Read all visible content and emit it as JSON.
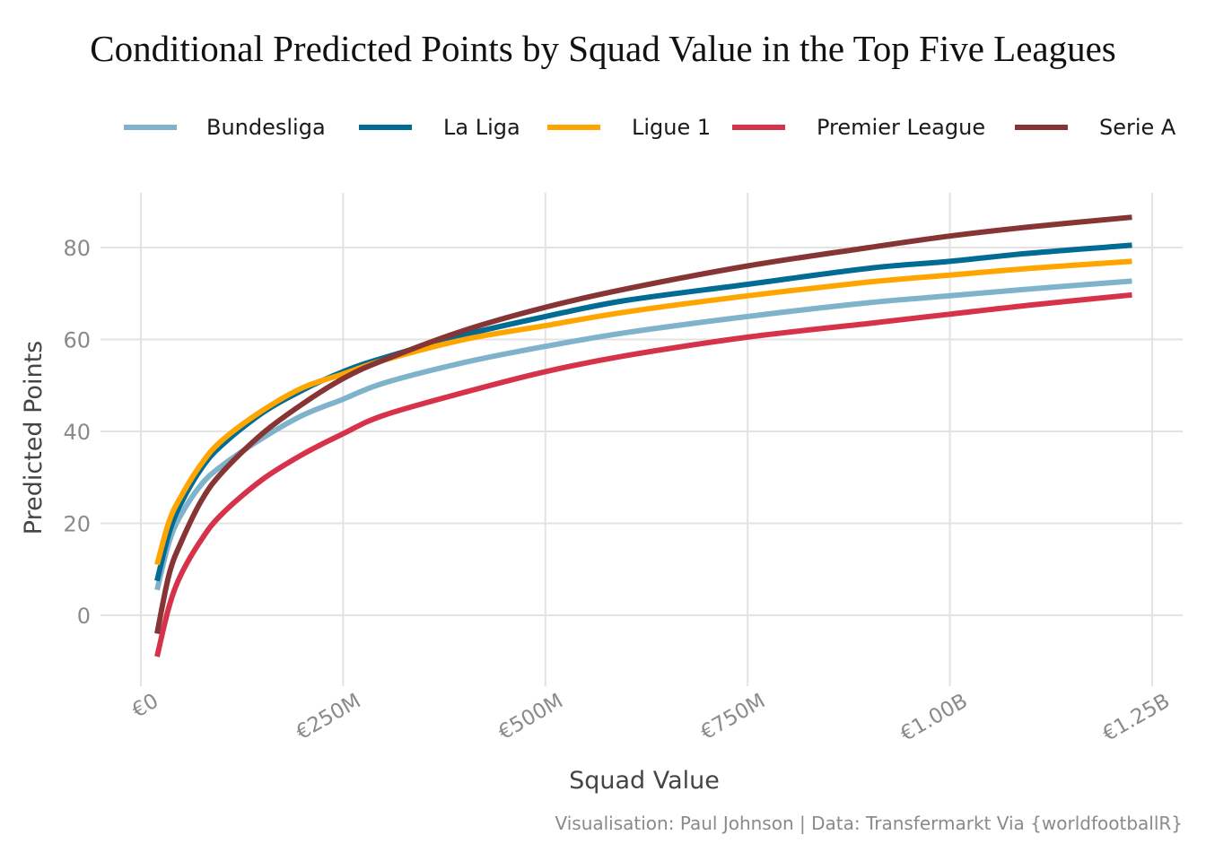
{
  "chart_data": {
    "type": "line",
    "title": "Conditional Predicted Points by Squad Value in the Top Five Leagues",
    "xlabel": "Squad Value",
    "ylabel": "Predicted Points",
    "caption": "Visualisation: Paul Johnson | Data: Transfermarkt Via {worldfootballR}",
    "x_tick_labels": [
      "€0",
      "€250M",
      "€500M",
      "€750M",
      "€1.00B",
      "€1.25B"
    ],
    "x_ticks": [
      0,
      250,
      500,
      750,
      1000,
      1250
    ],
    "y_ticks": [
      0,
      20,
      40,
      60,
      80
    ],
    "xlim": [
      -30,
      1290
    ],
    "ylim": [
      -15,
      92
    ],
    "x_unit": "€M",
    "grid": true,
    "legend_position": "top",
    "x": [
      20,
      35,
      50,
      75,
      100,
      150,
      200,
      250,
      300,
      400,
      500,
      600,
      750,
      900,
      1000,
      1100,
      1225
    ],
    "series": [
      {
        "name": "Bundesliga",
        "color": "#7fb3cb",
        "values": [
          5.5,
          16,
          22,
          28.5,
          32.5,
          38.5,
          43.5,
          47,
          50.5,
          55,
          58.5,
          61.5,
          65,
          68,
          69.5,
          71,
          72.7
        ]
      },
      {
        "name": "La Liga",
        "color": "#006b93",
        "values": [
          7.5,
          18,
          24.5,
          32,
          37,
          44,
          49,
          53,
          56,
          61,
          65,
          68.5,
          72,
          75.5,
          77,
          78.8,
          80.5
        ]
      },
      {
        "name": "Ligue 1",
        "color": "#ffa500",
        "values": [
          11,
          20.5,
          26,
          33,
          38,
          44.5,
          49.5,
          52.5,
          55.5,
          60,
          63,
          66,
          69.5,
          72.5,
          74,
          75.5,
          77
        ]
      },
      {
        "name": "Premier League",
        "color": "#d6334a",
        "values": [
          -9,
          2,
          9,
          16.5,
          22,
          29.5,
          35,
          39.5,
          43.5,
          48.5,
          53,
          56.5,
          60.5,
          63.5,
          65.5,
          67.5,
          69.7
        ]
      },
      {
        "name": "Serie A",
        "color": "#873434",
        "values": [
          -4,
          9,
          16,
          25,
          31,
          39.5,
          46,
          51.5,
          55.5,
          62,
          67,
          71,
          76,
          80,
          82.5,
          84.5,
          86.6
        ]
      }
    ]
  }
}
